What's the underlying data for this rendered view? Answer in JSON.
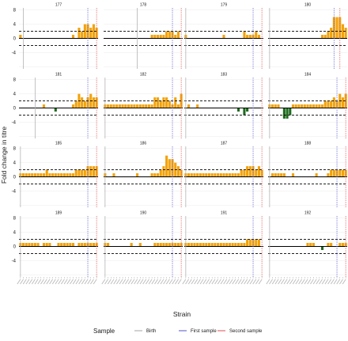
{
  "chart_data": {
    "type": "bar",
    "ylabel": "Fold change in titre",
    "xlabel": "Strain",
    "yticks": [
      -4,
      0,
      4,
      8
    ],
    "ylim": [
      -8.6,
      8.6
    ],
    "threshold": 2,
    "strain_count": 27,
    "colors": {
      "increase": "#f2a20c",
      "decrease": "#1e6b1e",
      "birth": "#b3b3b3",
      "first_sample": "#6f6fd6",
      "second_sample": "#e46a6a"
    },
    "legend": {
      "title": "Sample",
      "items": [
        {
          "label": "Birth",
          "color": "#b3b3b3"
        },
        {
          "label": "First sample",
          "color": "#6f6fd6"
        },
        {
          "label": "Second sample",
          "color": "#e46a6a"
        }
      ]
    },
    "panels": [
      {
        "title": "177",
        "birth": 1,
        "first": 23,
        "second": 26,
        "values": [
          1,
          0,
          0,
          0,
          0,
          0,
          0,
          0,
          0,
          0,
          0,
          0,
          0,
          0,
          0,
          0,
          0,
          0,
          1,
          0,
          3,
          2,
          4,
          4,
          3,
          4,
          3
        ]
      },
      {
        "title": "178",
        "birth": 11,
        "first": 23,
        "second": 26,
        "values": [
          0,
          0,
          0,
          0,
          0,
          0,
          0,
          0,
          0,
          0,
          0,
          0,
          0,
          0,
          0,
          0,
          1,
          1,
          1,
          1,
          1,
          2,
          2,
          2,
          1,
          2,
          0
        ]
      },
      {
        "title": "179",
        "birth": 0,
        "first": 23,
        "second": 26,
        "values": [
          1,
          0,
          0,
          0,
          0,
          0,
          0,
          0,
          0,
          0,
          0,
          0,
          0,
          1,
          0,
          0,
          0,
          0,
          0,
          0,
          2,
          1,
          1,
          1,
          2,
          1,
          0
        ]
      },
      {
        "title": "180",
        "birth": 0,
        "first": 22,
        "second": 24,
        "values": [
          0,
          0,
          0,
          0,
          0,
          0,
          0,
          0,
          0,
          0,
          0,
          0,
          0,
          0,
          0,
          0,
          0,
          0,
          1,
          1,
          2,
          3,
          6,
          6,
          6,
          4,
          3
        ]
      },
      {
        "title": "181",
        "birth": 5,
        "first": 23,
        "second": 26,
        "values": [
          0,
          0,
          0,
          0,
          0,
          0,
          0,
          0,
          1,
          0,
          0,
          0,
          -1,
          0,
          0,
          0,
          0,
          0,
          1,
          2,
          4,
          3,
          2,
          3,
          4,
          3,
          3
        ]
      },
      {
        "title": "182",
        "birth": 0,
        "first": 23,
        "second": 26,
        "values": [
          1,
          1,
          1,
          1,
          1,
          1,
          1,
          1,
          1,
          1,
          1,
          1,
          1,
          1,
          1,
          1,
          1,
          3,
          3,
          2,
          3,
          3,
          2,
          1,
          3,
          1,
          4
        ]
      },
      {
        "title": "183",
        "birth": 0,
        "first": 23,
        "second": 26,
        "values": [
          0,
          1,
          0,
          0,
          1,
          0,
          0,
          0,
          0,
          0,
          0,
          0,
          0,
          0,
          0,
          0,
          0,
          0,
          -1,
          0,
          -2,
          -1,
          0,
          0,
          0,
          0,
          0
        ]
      },
      {
        "title": "184",
        "birth": 0,
        "first": 23,
        "second": 26,
        "values": [
          1,
          1,
          1,
          1,
          0,
          -3,
          -3,
          -2,
          1,
          1,
          1,
          1,
          1,
          1,
          1,
          1,
          1,
          1,
          1,
          2,
          2,
          2,
          3,
          2,
          4,
          3,
          4
        ]
      },
      {
        "title": "185",
        "birth": 0,
        "first": 23,
        "second": 26,
        "values": [
          1,
          1,
          1,
          1,
          1,
          1,
          1,
          1,
          1,
          2,
          1,
          1,
          1,
          1,
          1,
          1,
          1,
          1,
          1,
          2,
          2,
          2,
          2,
          3,
          3,
          3,
          3
        ]
      },
      {
        "title": "186",
        "birth": 0,
        "first": 23,
        "second": 26,
        "values": [
          1,
          0,
          0,
          1,
          0,
          0,
          0,
          0,
          0,
          0,
          0,
          1,
          0,
          0,
          0,
          0,
          1,
          1,
          1,
          2,
          3,
          6,
          5,
          5,
          4,
          3,
          2
        ]
      },
      {
        "title": "187",
        "birth": 0,
        "first": 23,
        "second": 26,
        "values": [
          1,
          1,
          1,
          1,
          1,
          1,
          1,
          1,
          1,
          1,
          1,
          1,
          1,
          1,
          1,
          1,
          1,
          1,
          1,
          2,
          2,
          3,
          3,
          3,
          2,
          3,
          2
        ]
      },
      {
        "title": "188",
        "birth": 0,
        "first": 23,
        "second": 26,
        "values": [
          0,
          1,
          1,
          1,
          1,
          1,
          0,
          0,
          1,
          0,
          0,
          0,
          0,
          0,
          0,
          0,
          1,
          0,
          0,
          0,
          1,
          2,
          2,
          2,
          2,
          2,
          2
        ]
      },
      {
        "title": "189",
        "birth": 0,
        "first": 23,
        "second": 26,
        "values": [
          1,
          1,
          1,
          1,
          1,
          1,
          1,
          0,
          1,
          1,
          1,
          0,
          0,
          1,
          1,
          1,
          1,
          1,
          1,
          0,
          1,
          1,
          1,
          1,
          1,
          1,
          1
        ]
      },
      {
        "title": "190",
        "birth": 0,
        "first": 23,
        "second": 26,
        "values": [
          1,
          1,
          0,
          0,
          0,
          0,
          0,
          0,
          0,
          1,
          0,
          0,
          1,
          0,
          0,
          0,
          0,
          1,
          1,
          1,
          1,
          1,
          1,
          1,
          1,
          1,
          1
        ]
      },
      {
        "title": "191",
        "birth": 0,
        "first": 23,
        "second": 26,
        "values": [
          1,
          1,
          1,
          1,
          1,
          1,
          1,
          1,
          1,
          1,
          1,
          1,
          1,
          1,
          1,
          1,
          1,
          1,
          1,
          1,
          1,
          2,
          2,
          2,
          2,
          2,
          0
        ]
      },
      {
        "title": "192",
        "birth": 0,
        "first": 23,
        "second": 26,
        "values": [
          0,
          0,
          0,
          0,
          0,
          0,
          0,
          0,
          0,
          0,
          0,
          0,
          0,
          1,
          1,
          1,
          0,
          0,
          -1,
          0,
          1,
          1,
          0,
          0,
          1,
          1,
          1
        ]
      }
    ]
  }
}
